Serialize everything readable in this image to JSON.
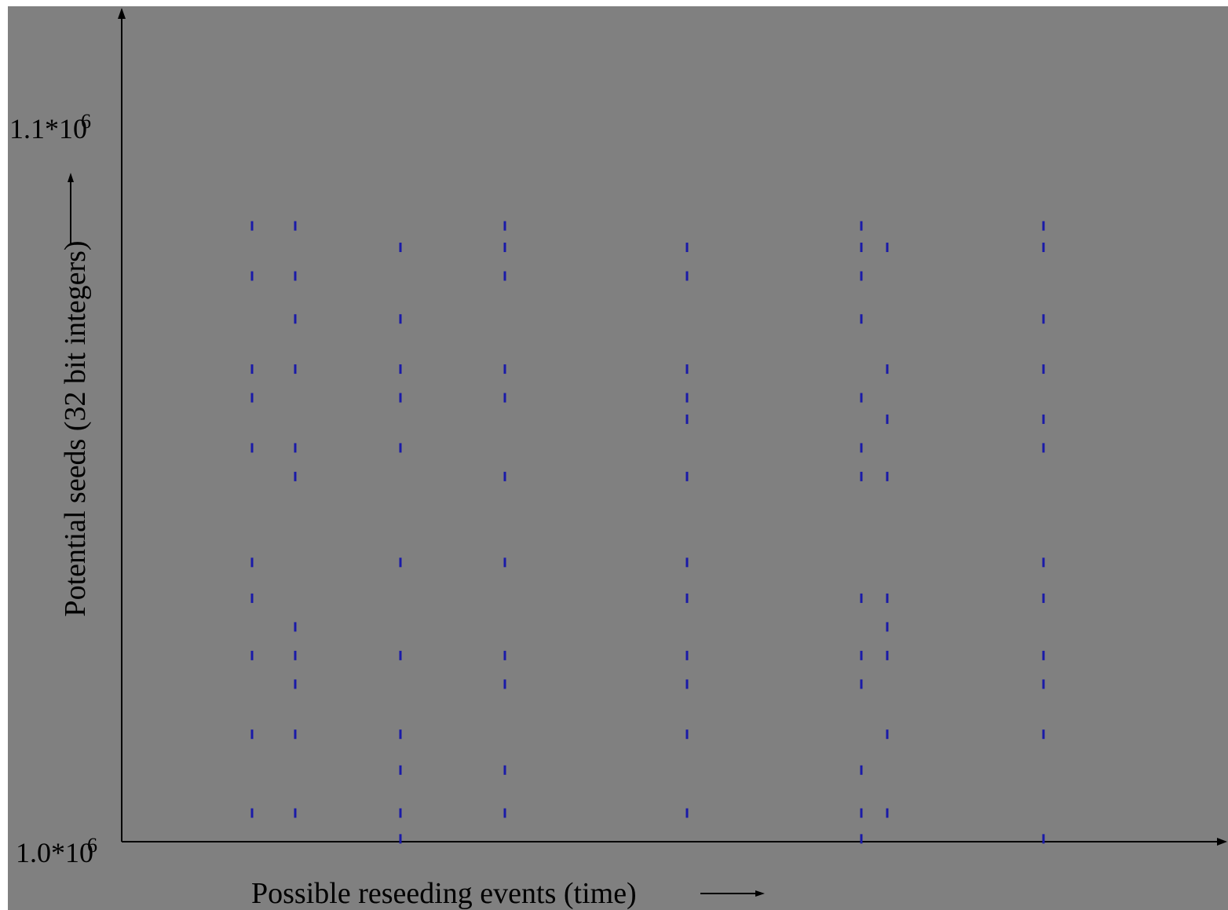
{
  "chart_data": {
    "type": "scatter",
    "xlabel": "Possible reseeding events (time)",
    "ylabel": "Potential seeds (32 bit integers)",
    "y_tick_labels": [
      "1.0*10^6",
      "1.1*10^6"
    ],
    "ylim": [
      1000000,
      1100000
    ],
    "grid": false,
    "legend": "none",
    "colors": {
      "background": "#808080",
      "marker": "#1a1aa8",
      "axis": "#000000"
    },
    "columns": [
      {
        "x": 1,
        "y": [
          1086000,
          1079000,
          1066000,
          1062000,
          1055000,
          1039000,
          1034000,
          1026000,
          1015000,
          1004000
        ]
      },
      {
        "x": 2,
        "y": [
          1086000,
          1079000,
          1073000,
          1066000,
          1055000,
          1051000,
          1030000,
          1026000,
          1022000,
          1015000,
          1004000
        ]
      },
      {
        "x": 3,
        "y": [
          1083000,
          1073000,
          1066000,
          1062000,
          1055000,
          1039000,
          1026000,
          1015000,
          1010000,
          1004000,
          1000400
        ]
      },
      {
        "x": 4,
        "y": [
          1086000,
          1083000,
          1079000,
          1066000,
          1062000,
          1051000,
          1039000,
          1026000,
          1022000,
          1010000,
          1004000
        ]
      },
      {
        "x": 5,
        "y": [
          1083000,
          1079000,
          1066000,
          1062000,
          1059000,
          1051000,
          1039000,
          1034000,
          1026000,
          1022000,
          1015000,
          1004000
        ]
      },
      {
        "x": 6,
        "y": [
          1086000,
          1083000,
          1079000,
          1073000,
          1062000,
          1055000,
          1051000,
          1034000,
          1026000,
          1022000,
          1010000,
          1004000,
          1000400
        ]
      },
      {
        "x": 7,
        "y": [
          1083000,
          1066000,
          1059000,
          1051000,
          1034000,
          1030000,
          1026000,
          1015000,
          1004000
        ]
      },
      {
        "x": 8,
        "y": [
          1086000,
          1083000,
          1073000,
          1066000,
          1059000,
          1055000,
          1039000,
          1034000,
          1026000,
          1022000,
          1015000,
          1000400
        ]
      }
    ]
  }
}
